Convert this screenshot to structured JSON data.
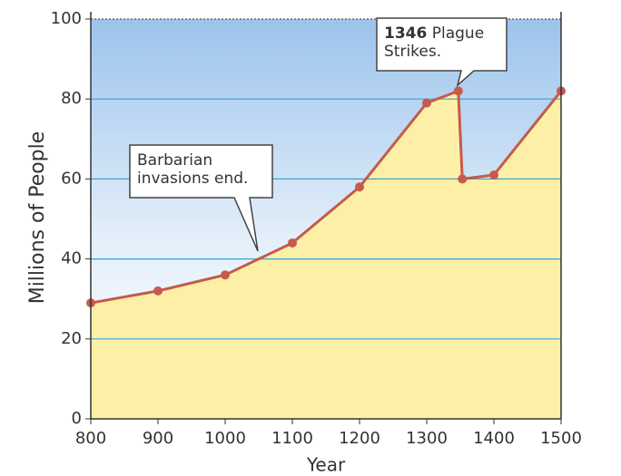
{
  "chart_data": {
    "type": "line",
    "x_label": "Year",
    "y_label": "Millions of People",
    "x": [
      800,
      900,
      1000,
      1100,
      1200,
      1300,
      1347,
      1353,
      1400,
      1500
    ],
    "series": [
      {
        "color": "#c65a4c",
        "values": [
          29,
          32,
          36,
          44,
          58,
          79,
          82,
          60,
          61,
          82
        ]
      }
    ],
    "xlim": [
      800,
      1500
    ],
    "xticks": [
      800,
      900,
      1000,
      1100,
      1200,
      1300,
      1400,
      1500
    ],
    "ylim": [
      0,
      100
    ],
    "yticks": [
      0,
      20,
      40,
      60,
      80,
      100
    ],
    "grid": true,
    "annotations": [
      {
        "text": "Barbarian invasions end."
      },
      {
        "year": "1346",
        "text": "Plague Strikes."
      }
    ]
  }
}
